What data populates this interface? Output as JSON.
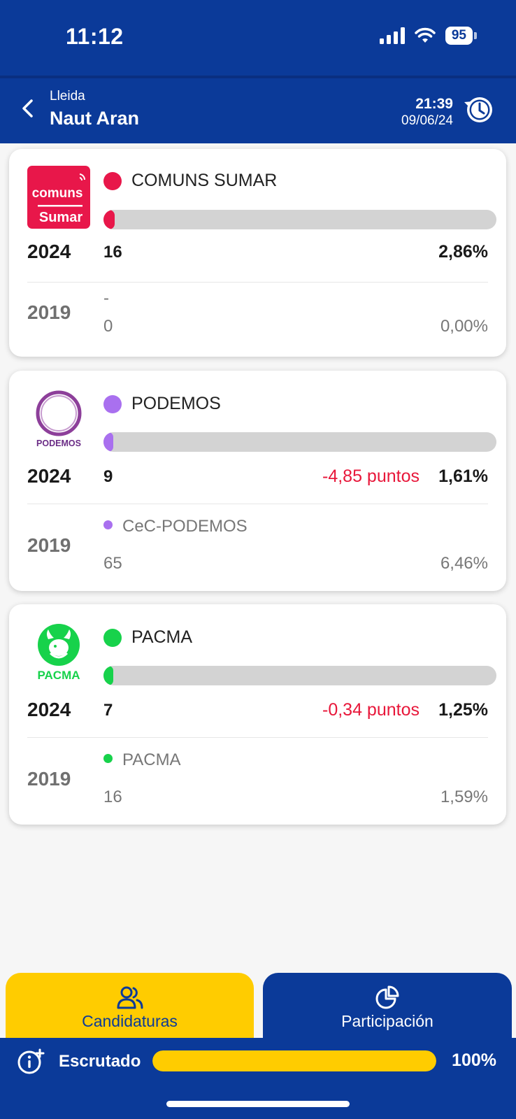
{
  "status_bar": {
    "time": "11:12",
    "battery": "95"
  },
  "header": {
    "region": "Lleida",
    "place": "Naut Aran",
    "update_time": "21:39",
    "update_date": "09/06/24"
  },
  "parties": [
    {
      "name": "COMUNS SUMAR",
      "color": "#e8174a",
      "logo_text_1": "comuns",
      "logo_text_2": "Sumar",
      "bar_fraction": 0.0286,
      "year_current": "2024",
      "votes_current": "16",
      "pct_current": "2,86%",
      "delta": "",
      "year_previous": "2019",
      "prev_name": "-",
      "votes_previous": "0",
      "pct_previous": "0,00%"
    },
    {
      "name": "PODEMOS",
      "color": "#a970ef",
      "logo_text_1": "PODEMOS",
      "bar_fraction": 0.0161,
      "year_current": "2024",
      "votes_current": "9",
      "pct_current": "1,61%",
      "delta": "-4,85 puntos",
      "year_previous": "2019",
      "prev_name": "CeC-PODEMOS",
      "votes_previous": "65",
      "pct_previous": "6,46%"
    },
    {
      "name": "PACMA",
      "color": "#17d24b",
      "logo_text_1": "PACMA",
      "bar_fraction": 0.0125,
      "year_current": "2024",
      "votes_current": "7",
      "pct_current": "1,25%",
      "delta": "-0,34 puntos",
      "year_previous": "2019",
      "prev_name": "PACMA",
      "votes_previous": "16",
      "pct_previous": "1,59%"
    }
  ],
  "tabs": {
    "candidaturas": "Candidaturas",
    "participacion": "Participación"
  },
  "footer": {
    "label": "Escrutado",
    "percent": "100%",
    "fraction": 1.0
  },
  "colors": {
    "primary": "#0b3a99",
    "accent": "#ffcc00",
    "negative": "#e8173a"
  }
}
